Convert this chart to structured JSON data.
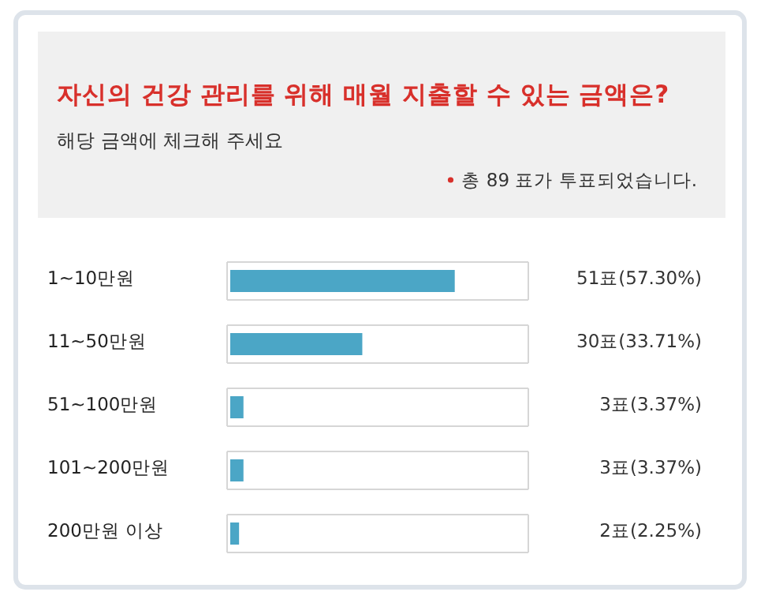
{
  "chart_data": {
    "type": "bar",
    "orientation": "horizontal",
    "title": "자신의 건강 관리를 위해 매월 지출할 수 있는 금액은?",
    "subtitle": "해당 금액에 체크해 주세요",
    "annotations": [
      "총 89 표가 투표되었습니다."
    ],
    "categories": [
      "1~10만원",
      "11~50만원",
      "51~100만원",
      "101~200만원",
      "200만원 이상"
    ],
    "values": [
      51,
      30,
      3,
      3,
      2
    ],
    "value_labels": [
      "51표(57.30%)",
      "30표(33.71%)",
      "3표(3.37%)",
      "3표(3.37%)",
      "2표(2.25%)"
    ],
    "xlim": [
      0,
      67
    ],
    "color": "#4ba6c6"
  }
}
